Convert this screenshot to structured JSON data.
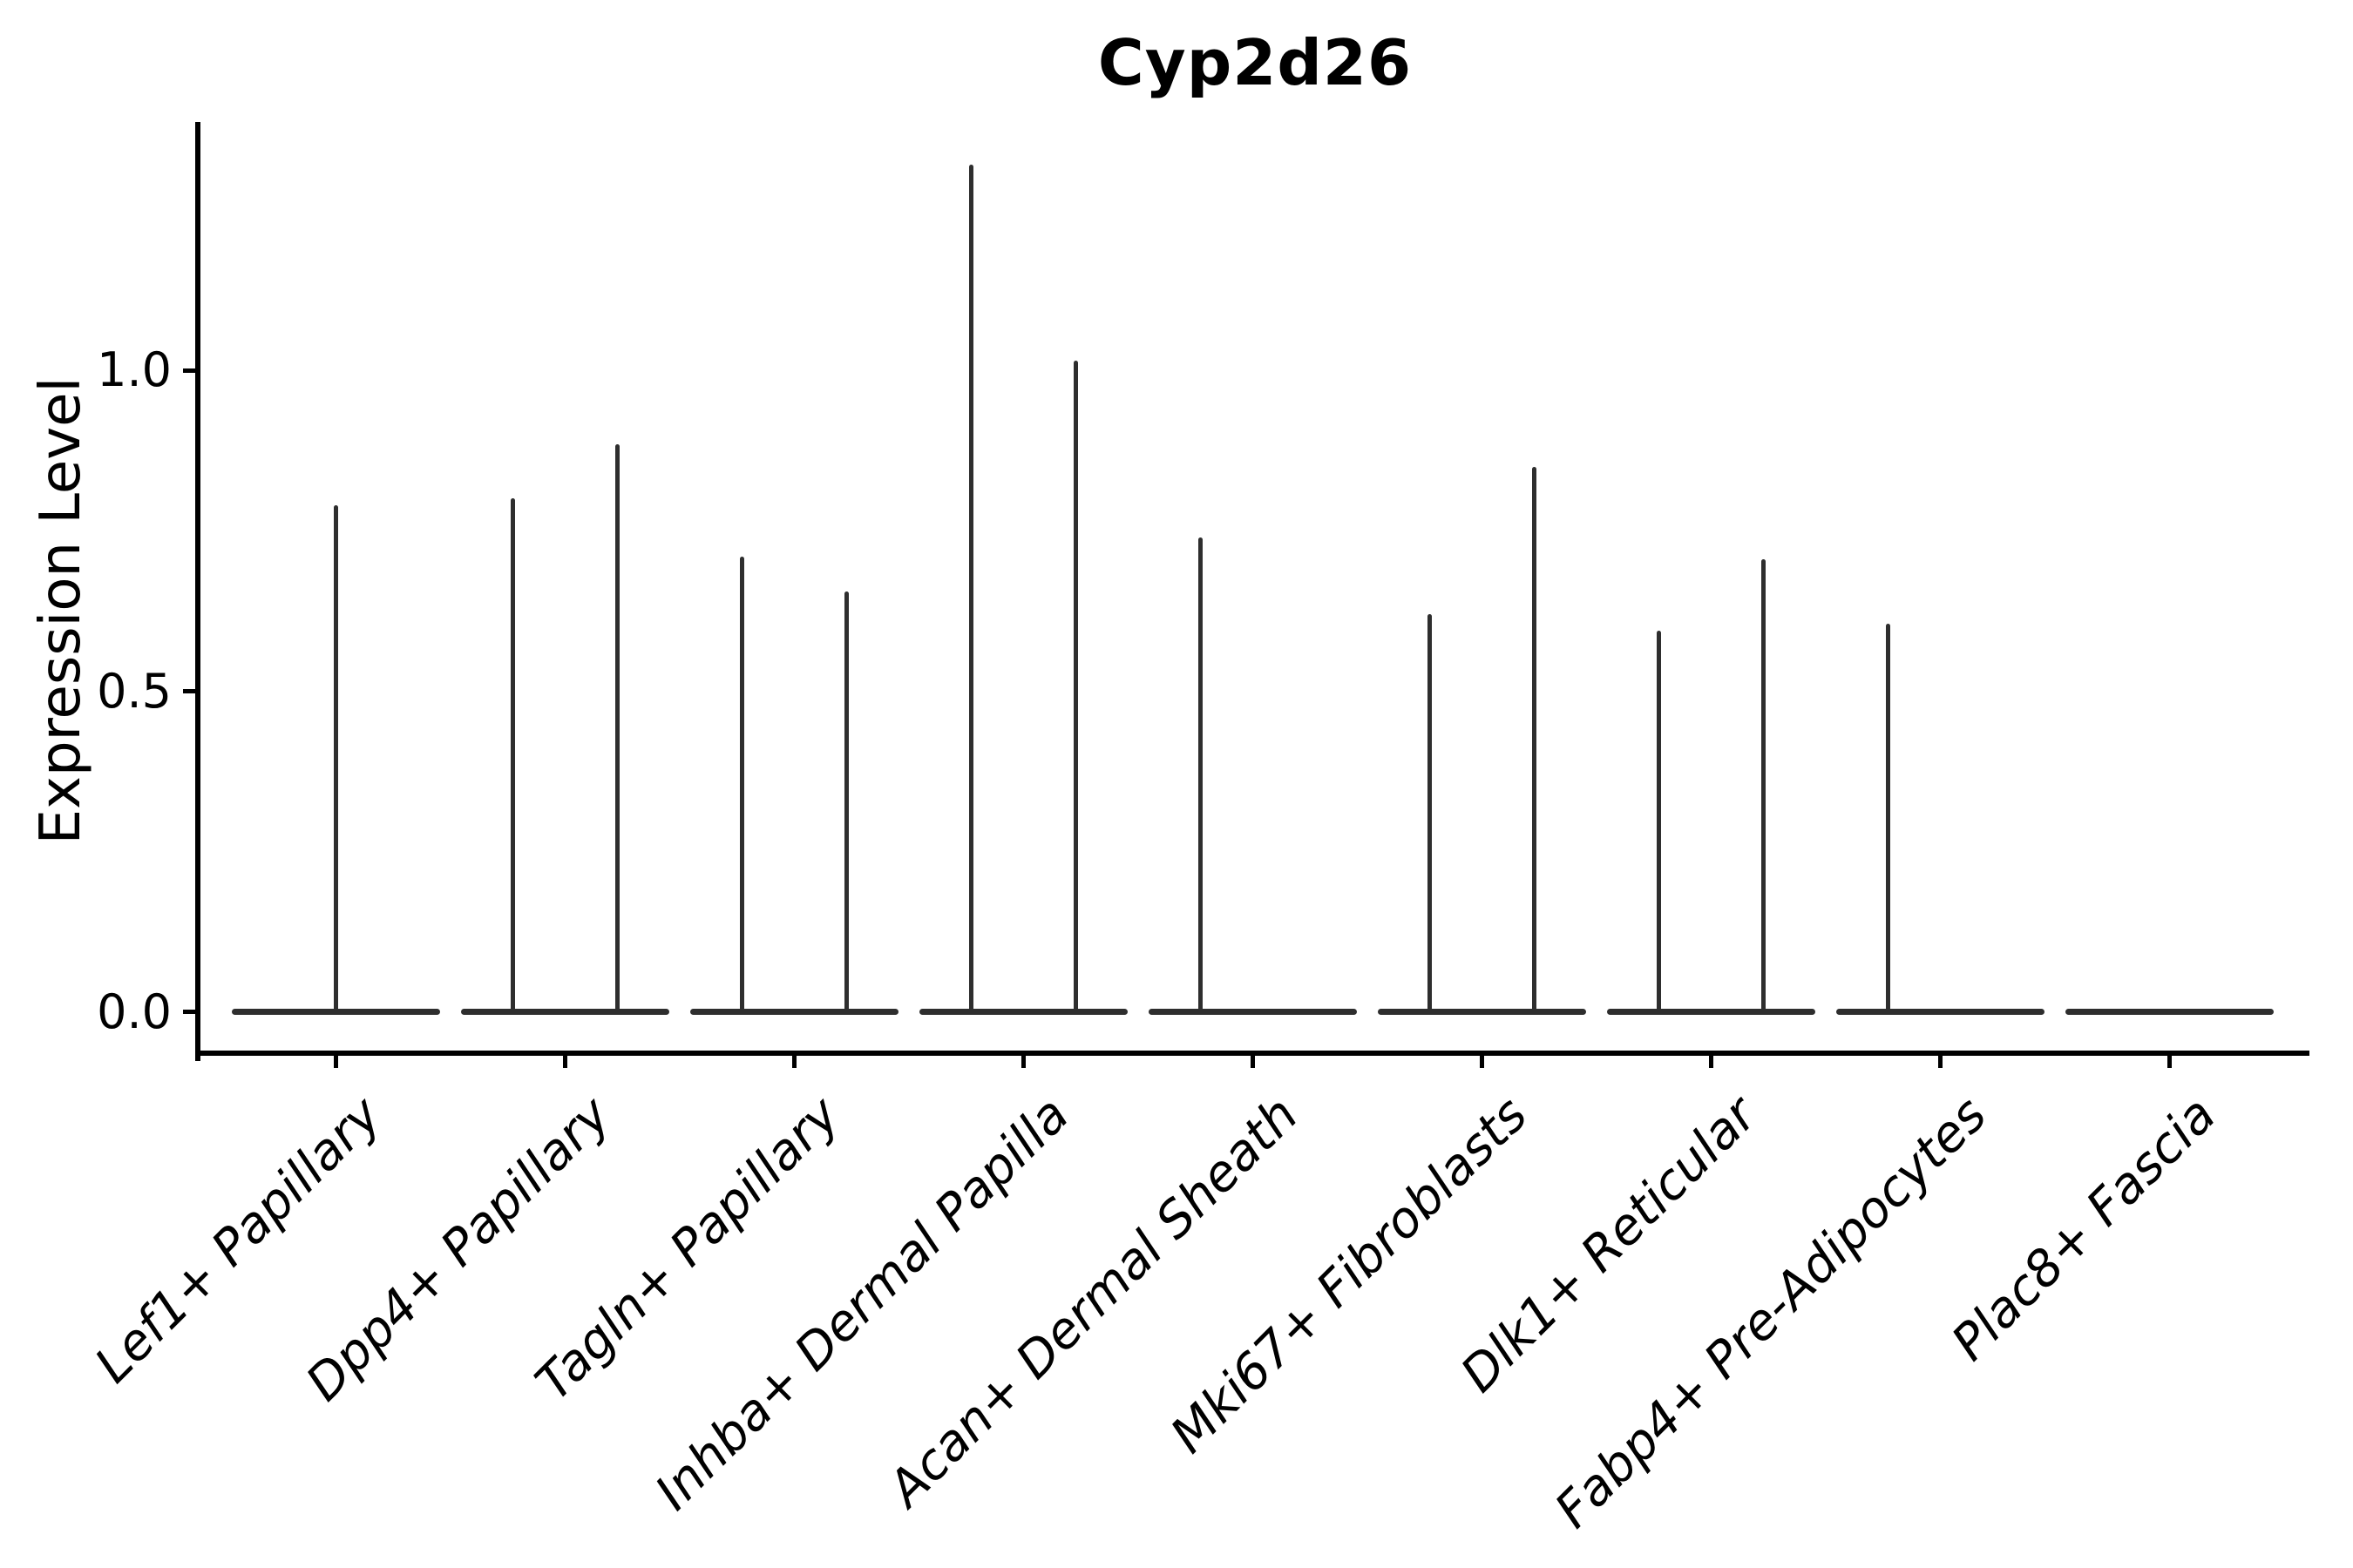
{
  "chart_data": {
    "type": "violin",
    "title": "Cyp2d26",
    "ylabel": "Expression Level",
    "xlabel": "",
    "ytick_labels": [
      "0.0",
      "0.5",
      "1.0"
    ],
    "yticks": [
      0.0,
      0.5,
      1.0
    ],
    "ylim": [
      -0.068,
      1.387
    ],
    "xlim": [
      -0.59,
      8.61
    ],
    "grid": false,
    "legend": "none",
    "violin_width": 0.91,
    "categories": [
      "Lef1+ Papillary",
      "Dpp4+ Papillary",
      "Tagln+ Papillary",
      "Inhba+ Dermal Papilla",
      "Acan+ Dermal Sheath",
      "Mki67+ Fibroblasts",
      "Dlk1+ Reticular",
      "Fabp4+ Pre-Adipocytes",
      "Plac8+ Fascia"
    ],
    "violins": [
      {
        "category": "Lef1+ Papillary",
        "baseline": 0.0,
        "spikes": [
          {
            "dx": 0.0,
            "max": 0.79
          }
        ]
      },
      {
        "category": "Dpp4+ Papillary",
        "baseline": 0.0,
        "spikes": [
          {
            "dx": -0.228,
            "max": 0.8
          },
          {
            "dx": 0.228,
            "max": 0.885
          }
        ]
      },
      {
        "category": "Tagln+ Papillary",
        "baseline": 0.0,
        "spikes": [
          {
            "dx": -0.228,
            "max": 0.71
          },
          {
            "dx": 0.228,
            "max": 0.655
          }
        ]
      },
      {
        "category": "Inhba+ Dermal Papilla",
        "baseline": 0.0,
        "spikes": [
          {
            "dx": -0.228,
            "max": 1.32
          },
          {
            "dx": 0.228,
            "max": 1.015
          }
        ]
      },
      {
        "category": "Acan+ Dermal Sheath",
        "baseline": 0.0,
        "spikes": [
          {
            "dx": -0.228,
            "max": 0.74
          }
        ]
      },
      {
        "category": "Mki67+ Fibroblasts",
        "baseline": 0.0,
        "spikes": [
          {
            "dx": -0.228,
            "max": 0.62
          },
          {
            "dx": 0.228,
            "max": 0.85
          }
        ]
      },
      {
        "category": "Dlk1+ Reticular",
        "baseline": 0.0,
        "spikes": [
          {
            "dx": -0.228,
            "max": 0.595
          },
          {
            "dx": 0.228,
            "max": 0.705
          }
        ]
      },
      {
        "category": "Fabp4+ Pre-Adipocytes",
        "baseline": 0.0,
        "spikes": [
          {
            "dx": -0.228,
            "max": 0.605
          }
        ]
      },
      {
        "category": "Plac8+ Fascia",
        "baseline": 0.0,
        "spikes": []
      }
    ],
    "colors": {
      "violin": "#2e2e2e",
      "axis": "#000000",
      "text": "#000000",
      "background": "#ffffff"
    }
  }
}
